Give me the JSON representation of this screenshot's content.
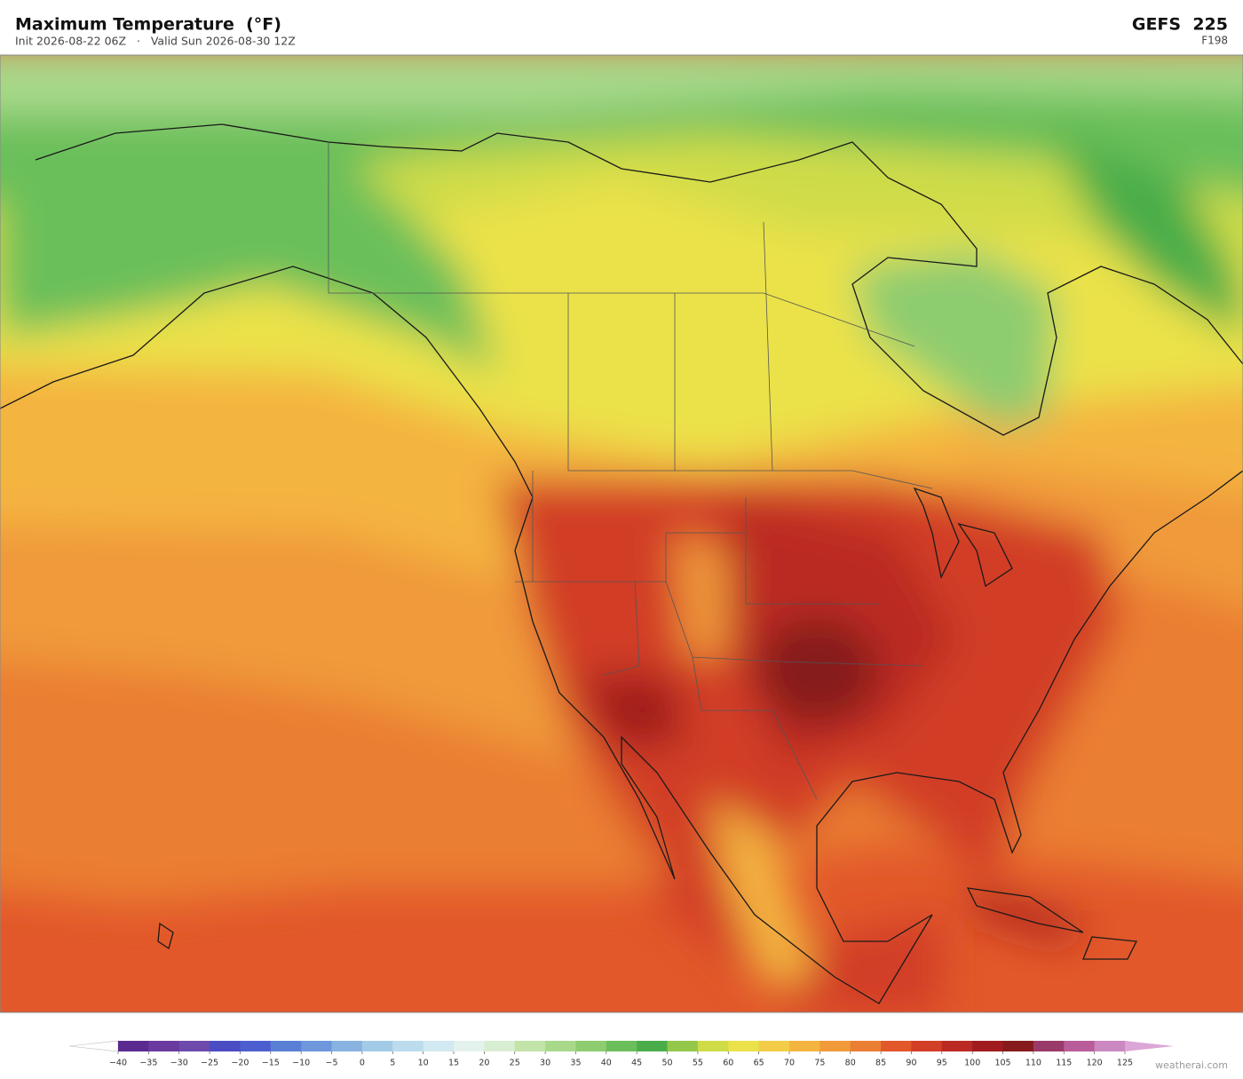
{
  "header": {
    "title": "Maximum Temperature  (°F)",
    "subtitle": "Init 2026-08-22 06Z   ·   Valid Sun 2026-08-30 12Z",
    "model": "GEFS  225",
    "forecast_hour": "F198"
  },
  "colorbar": {
    "ticks": [
      {
        "value": -40,
        "label": "−40"
      },
      {
        "value": -35,
        "label": "−35"
      },
      {
        "value": -30,
        "label": "−30"
      },
      {
        "value": -25,
        "label": "−25"
      },
      {
        "value": -20,
        "label": "−20"
      },
      {
        "value": -15,
        "label": "−15"
      },
      {
        "value": -10,
        "label": "−10"
      },
      {
        "value": -5,
        "label": "−5"
      },
      0,
      5,
      10,
      15,
      20,
      25,
      30,
      35,
      40,
      45,
      50,
      55,
      60,
      65,
      70,
      75,
      80,
      85,
      90,
      95,
      100,
      105,
      110,
      115,
      120,
      125
    ],
    "colors": [
      "#5b2a91",
      "#6a3a9e",
      "#6e4aad",
      "#4a4cc4",
      "#4d5fd0",
      "#5a80d6",
      "#6e97dc",
      "#88b3e0",
      "#a3cbe8",
      "#bcdcee",
      "#d2e8f2",
      "#e4f2ee",
      "#d8eed2",
      "#c2e4a8",
      "#a8d98a",
      "#8ecc70",
      "#6abf5a",
      "#4aad4a",
      "#93c84a",
      "#cfdc48",
      "#ebe24a",
      "#f3cd48",
      "#f4b440",
      "#f09a3a",
      "#ea7e32",
      "#e2582a",
      "#d23e26",
      "#bb2a22",
      "#a01c1e",
      "#861a1c",
      "#9a3a6a",
      "#b85c9a",
      "#cc88c0"
    ],
    "under_color": "#ffffff",
    "over_color": "#dca6d6"
  },
  "watermark": "weatherai.com"
}
